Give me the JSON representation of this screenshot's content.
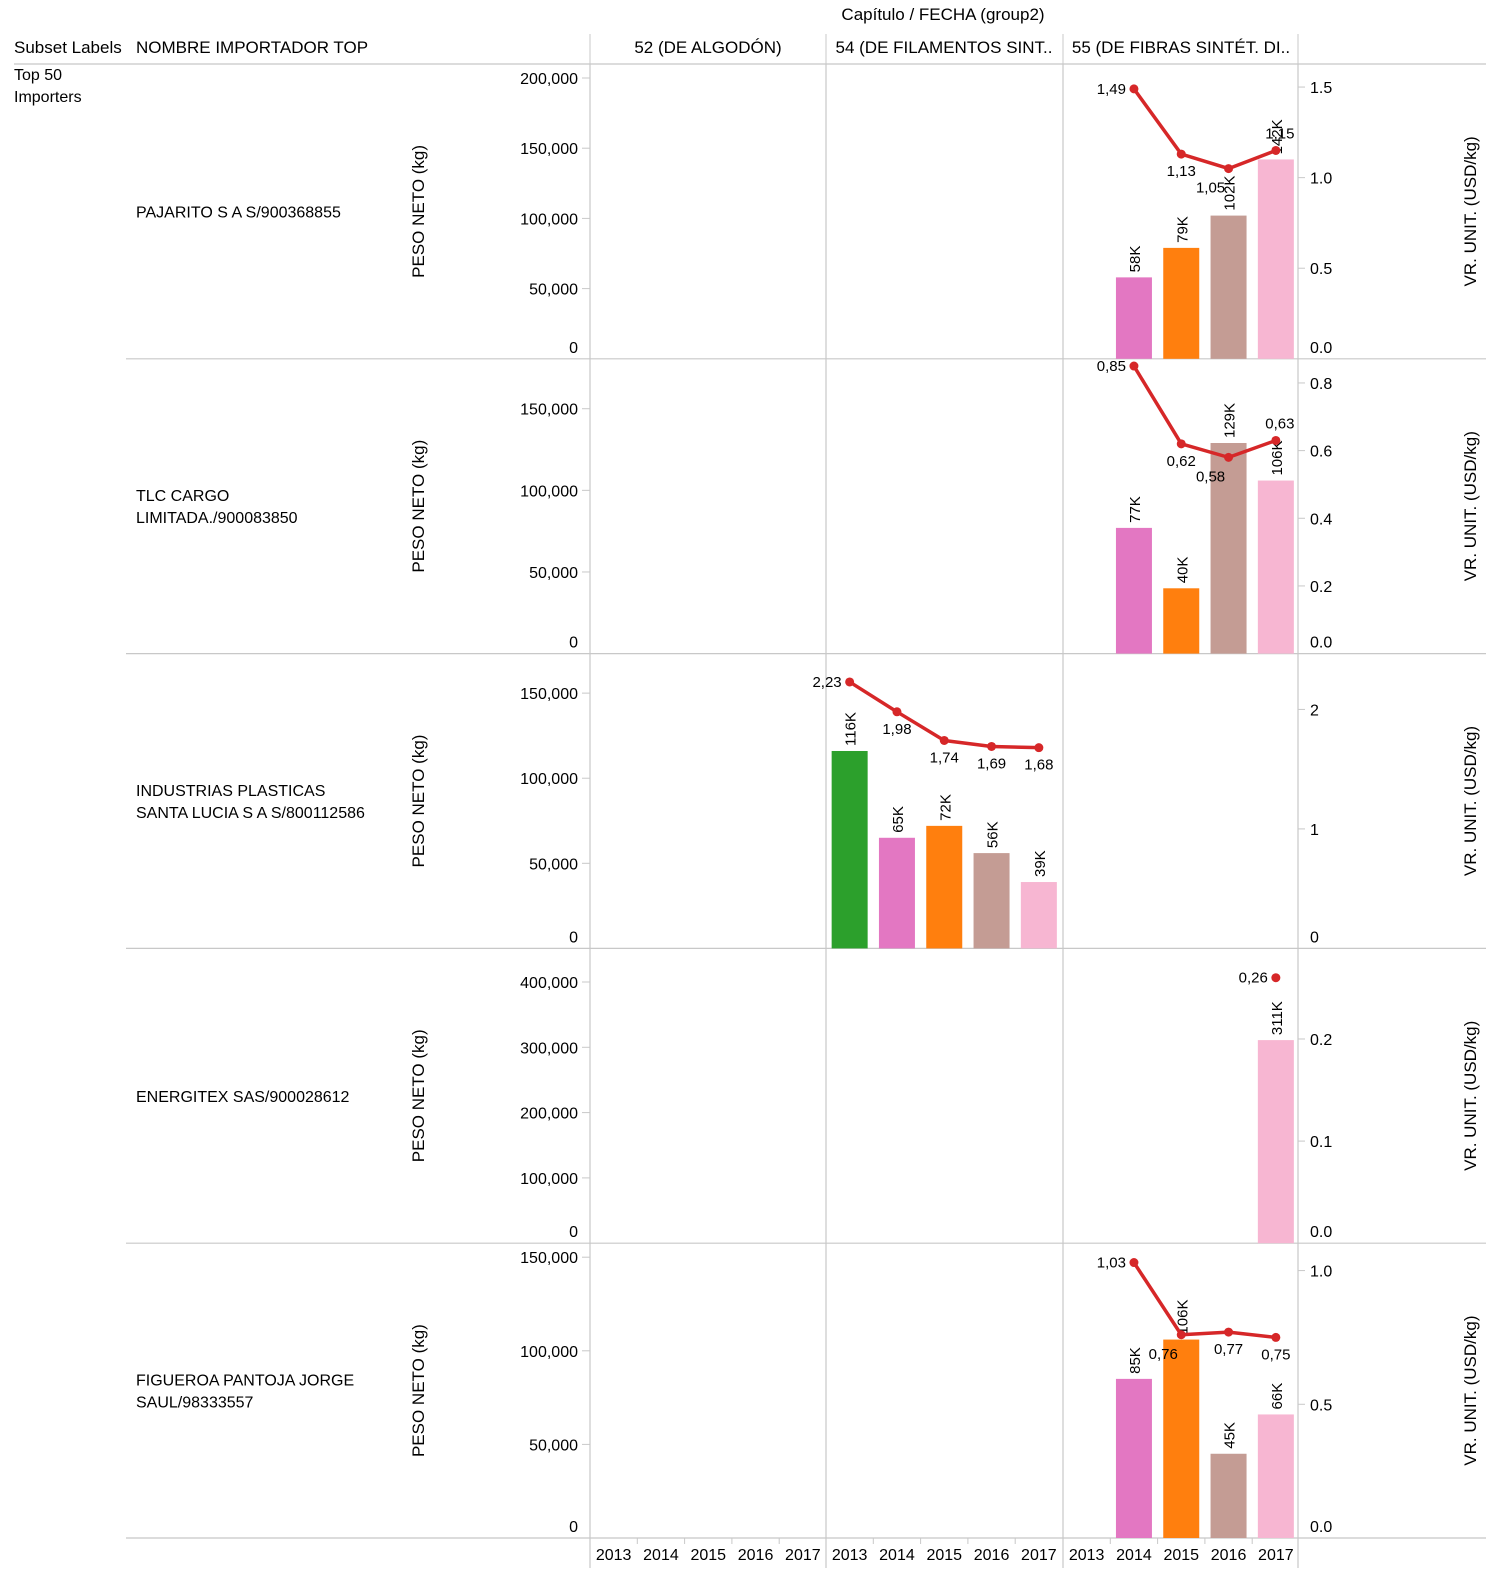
{
  "header": {
    "top_title": "Capítulo  /  FECHA (group2)",
    "subset_col": "Subset Labels",
    "importer_col": "NOMBRE IMPORTADOR TOP"
  },
  "subset_label": [
    "Top 50",
    "Importers"
  ],
  "chapters": [
    "52 (DE ALGODÓN)",
    "54 (DE FILAMENTOS SINT..",
    "55 (DE FIBRAS SINTÉT.  DI.."
  ],
  "years": [
    "2013",
    "2014",
    "2015",
    "2016",
    "2017"
  ],
  "colors": {
    "2013": "#2ca02c",
    "2014": "#e377c2",
    "2015": "#ff7f0e",
    "2016": "#c49c94",
    "2017": "#f7b6d2",
    "line": "#d62728",
    "grid": "#c8c8c8"
  },
  "chart_data": {
    "type": "bar",
    "title": "",
    "y_left_label": "PESO NETO (kg)",
    "y_right_label": "VR. UNIT. (USD/kg)",
    "x": [
      "2013",
      "2014",
      "2015",
      "2016",
      "2017"
    ],
    "rows": [
      {
        "importer": [
          "PAJARITO S A S/900368855"
        ],
        "left_ticks": [
          "200,000",
          "150,000",
          "100,000",
          "50,000",
          "0"
        ],
        "left_tick_values": [
          200000,
          150000,
          100000,
          50000,
          0
        ],
        "left_max": 200000,
        "right_ticks": [
          "1.5",
          "1.0",
          "0.5",
          "0.0"
        ],
        "right_tick_values": [
          1.5,
          1.0,
          0.5,
          0.0
        ],
        "right_max": 1.55,
        "chapter": 2,
        "bars": [
          {
            "year": "2014",
            "value": 58000,
            "label": "58K"
          },
          {
            "year": "2015",
            "value": 79000,
            "label": "79K"
          },
          {
            "year": "2016",
            "value": 102000,
            "label": "102K"
          },
          {
            "year": "2017",
            "value": 142000,
            "label": "142K"
          }
        ],
        "line": [
          {
            "year": "2014",
            "value": 1.49,
            "label": "1,49"
          },
          {
            "year": "2015",
            "value": 1.13,
            "label": "1,13"
          },
          {
            "year": "2016",
            "value": 1.05,
            "label": "1,05"
          },
          {
            "year": "2017",
            "value": 1.15,
            "label": "1,15"
          }
        ]
      },
      {
        "importer": [
          "TLC CARGO",
          "LIMITADA./900083850"
        ],
        "left_ticks": [
          "150,000",
          "100,000",
          "50,000",
          "0"
        ],
        "left_tick_values": [
          150000,
          100000,
          50000,
          0
        ],
        "left_max": 172000,
        "right_ticks": [
          "0.8",
          "0.6",
          "0.4",
          "0.2",
          "0.0"
        ],
        "right_tick_values": [
          0.8,
          0.6,
          0.4,
          0.2,
          0.0
        ],
        "right_max": 0.83,
        "chapter": 2,
        "bars": [
          {
            "year": "2014",
            "value": 77000,
            "label": "77K"
          },
          {
            "year": "2015",
            "value": 40000,
            "label": "40K"
          },
          {
            "year": "2016",
            "value": 129000,
            "label": "129K"
          },
          {
            "year": "2017",
            "value": 106000,
            "label": "106K"
          }
        ],
        "line": [
          {
            "year": "2014",
            "value": 0.85,
            "label": "0,85"
          },
          {
            "year": "2015",
            "value": 0.62,
            "label": "0,62"
          },
          {
            "year": "2016",
            "value": 0.58,
            "label": "0,58"
          },
          {
            "year": "2017",
            "value": 0.63,
            "label": "0,63"
          }
        ]
      },
      {
        "importer": [
          "INDUSTRIAS PLASTICAS",
          "SANTA LUCIA S A S/800112586"
        ],
        "left_ticks": [
          "150,000",
          "100,000",
          "50,000",
          "0"
        ],
        "left_tick_values": [
          150000,
          100000,
          50000,
          0
        ],
        "left_max": 165000,
        "right_ticks": [
          "2",
          "1",
          "0"
        ],
        "right_tick_values": [
          2,
          1,
          0
        ],
        "right_max": 2.35,
        "chapter": 1,
        "bars": [
          {
            "year": "2013",
            "value": 116000,
            "label": "116K"
          },
          {
            "year": "2014",
            "value": 65000,
            "label": "65K"
          },
          {
            "year": "2015",
            "value": 72000,
            "label": "72K"
          },
          {
            "year": "2016",
            "value": 56000,
            "label": "56K"
          },
          {
            "year": "2017",
            "value": 39000,
            "label": "39K"
          }
        ],
        "line": [
          {
            "year": "2013",
            "value": 2.23,
            "label": "2,23"
          },
          {
            "year": "2014",
            "value": 1.98,
            "label": "1,98"
          },
          {
            "year": "2015",
            "value": 1.74,
            "label": "1,74"
          },
          {
            "year": "2016",
            "value": 1.69,
            "label": "1,69"
          },
          {
            "year": "2017",
            "value": 1.68,
            "label": "1,68"
          }
        ]
      },
      {
        "importer": [
          "ENERGITEX SAS/900028612"
        ],
        "left_ticks": [
          "400,000",
          "300,000",
          "200,000",
          "100,000",
          "0"
        ],
        "left_tick_values": [
          400000,
          300000,
          200000,
          100000,
          0
        ],
        "left_max": 430000,
        "right_ticks": [
          "0.2",
          "0.1",
          "0.0"
        ],
        "right_tick_values": [
          0.2,
          0.1,
          0.0
        ],
        "right_max": 0.275,
        "chapter": 2,
        "bars": [
          {
            "year": "2017",
            "value": 311000,
            "label": "311K"
          }
        ],
        "line": [
          {
            "year": "2017",
            "value": 0.26,
            "label": "0,26"
          }
        ]
      },
      {
        "importer": [
          "FIGUEROA PANTOJA JORGE",
          "SAUL/98333557"
        ],
        "left_ticks": [
          "150,000",
          "100,000",
          "50,000",
          "0"
        ],
        "left_tick_values": [
          150000,
          100000,
          50000,
          0
        ],
        "left_max": 150000,
        "right_ticks": [
          "1.0",
          "0.5",
          "0.0"
        ],
        "right_tick_values": [
          1.0,
          0.5,
          0.0
        ],
        "right_max": 1.05,
        "chapter": 2,
        "bars": [
          {
            "year": "2014",
            "value": 85000,
            "label": "85K"
          },
          {
            "year": "2015",
            "value": 106000,
            "label": "106K"
          },
          {
            "year": "2016",
            "value": 45000,
            "label": "45K"
          },
          {
            "year": "2017",
            "value": 66000,
            "label": "66K"
          }
        ],
        "line": [
          {
            "year": "2014",
            "value": 1.03,
            "label": "1,03"
          },
          {
            "year": "2015",
            "value": 0.76,
            "label": "0,76"
          },
          {
            "year": "2016",
            "value": 0.77,
            "label": "0,77"
          },
          {
            "year": "2017",
            "value": 0.75,
            "label": "0,75"
          }
        ]
      }
    ]
  }
}
